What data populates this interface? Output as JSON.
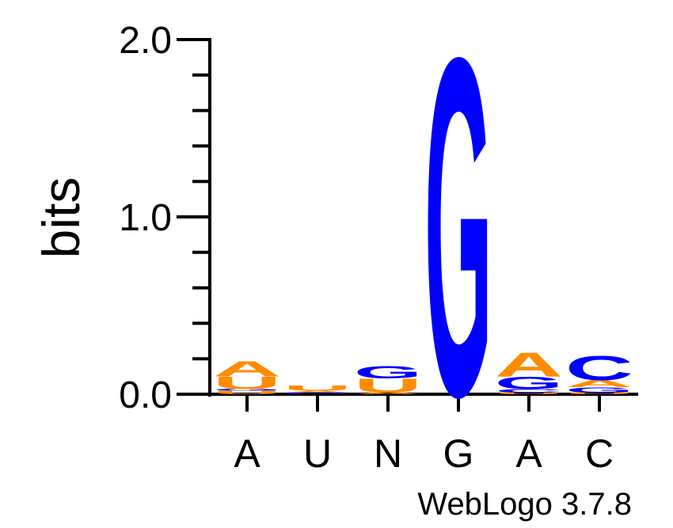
{
  "chart_data": {
    "type": "sequence-logo",
    "ylabel": "bits",
    "ylim": [
      0,
      2.0
    ],
    "yticks": [
      "0.0",
      "1.0",
      "2.0"
    ],
    "minor_tick_step": 0.2,
    "positions": [
      "A",
      "U",
      "N",
      "G",
      "A",
      "C"
    ],
    "stacks": [
      [
        {
          "letter": "U",
          "bits": 0.02
        },
        {
          "letter": "G",
          "bits": 0.01
        },
        {
          "letter": "U",
          "bits": 0.07
        },
        {
          "letter": "A",
          "bits": 0.09
        }
      ],
      [
        {
          "letter": "G",
          "bits": 0.01
        },
        {
          "letter": "A",
          "bits": 0.01
        },
        {
          "letter": "U",
          "bits": 0.03
        }
      ],
      [
        {
          "letter": "A",
          "bits": 0.01
        },
        {
          "letter": "U",
          "bits": 0.08
        },
        {
          "letter": "G",
          "bits": 0.07
        }
      ],
      [
        {
          "letter": "G",
          "bits": 1.95
        }
      ],
      [
        {
          "letter": "U",
          "bits": 0.01
        },
        {
          "letter": "C",
          "bits": 0.02
        },
        {
          "letter": "G",
          "bits": 0.07
        },
        {
          "letter": "A",
          "bits": 0.14
        }
      ],
      [
        {
          "letter": "U",
          "bits": 0.01
        },
        {
          "letter": "G",
          "bits": 0.03
        },
        {
          "letter": "A",
          "bits": 0.04
        },
        {
          "letter": "C",
          "bits": 0.14
        }
      ]
    ],
    "colors": {
      "A": "#ff8c00",
      "U": "#ff8c00",
      "G": "#0000ff",
      "C": "#0000ff"
    },
    "footer": "WebLogo 3.7.8"
  }
}
